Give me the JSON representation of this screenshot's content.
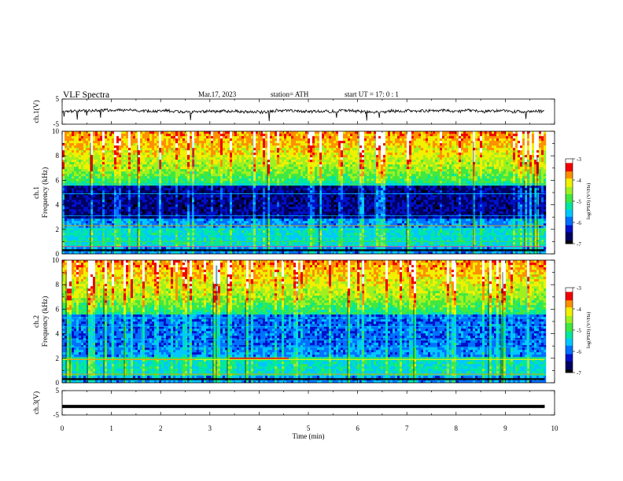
{
  "header": {
    "title": "VLF  Spectra",
    "date": "Mar.17, 2023",
    "station": "station= ATH",
    "start": "start  UT  =    17: 0   : 1"
  },
  "chart_data": [
    {
      "type": "line",
      "name": "ch1-waveform",
      "ylabel": "ch.1(V)",
      "ylim": [
        -5,
        5
      ],
      "yticks": [
        "5",
        "-5"
      ],
      "xlim": [
        0,
        10
      ],
      "trace_extent_min": [
        0,
        9.8
      ],
      "baseline": 0.3
    },
    {
      "type": "heatmap",
      "name": "ch1-spectrogram",
      "ylabel": "ch.1\nFrequency  (kHz)",
      "ylim": [
        0,
        10
      ],
      "yticks": [
        "0",
        "2",
        "4",
        "6",
        "8",
        "10"
      ],
      "xlim": [
        0,
        10
      ],
      "data_extent_min": [
        0,
        9.8
      ],
      "colorbar": {
        "label": "log(PSD) (V²/Hz)",
        "range": [
          -7,
          -3
        ],
        "ticks": [
          "-3",
          "-4",
          "-5",
          "-6",
          "-7"
        ]
      }
    },
    {
      "type": "heatmap",
      "name": "ch2-spectrogram",
      "ylabel": "ch.2\nFrequency  (kHz)",
      "ylim": [
        0,
        10
      ],
      "yticks": [
        "0",
        "2",
        "4",
        "6",
        "8",
        "10"
      ],
      "xlim": [
        0,
        10
      ],
      "data_extent_min": [
        0,
        9.8
      ],
      "colorbar": {
        "label": "log(PSD) (V²/Hz)",
        "range": [
          -7,
          -3
        ],
        "ticks": [
          "-3",
          "-4",
          "-5",
          "-6",
          "-7"
        ]
      }
    },
    {
      "type": "line",
      "name": "ch3-waveform",
      "ylabel": "ch.3(V)",
      "ylim": [
        -5,
        5
      ],
      "yticks": [
        "5",
        "-5"
      ],
      "xlim": [
        0,
        10
      ],
      "trace_extent_min": [
        0,
        9.8
      ],
      "baseline": -1.5
    }
  ],
  "xaxis": {
    "label": "Time  (min)",
    "ticks": [
      "0",
      "1",
      "2",
      "3",
      "4",
      "5",
      "6",
      "7",
      "8",
      "9",
      "10"
    ]
  },
  "colors": {
    "trace": "#000000",
    "axis": "#000000",
    "colormap": [
      "#000000",
      "#000060",
      "#0010c8",
      "#0070ff",
      "#00c8ff",
      "#00e8a0",
      "#40e840",
      "#a0f020",
      "#f0f000",
      "#ff9000",
      "#f00000",
      "#ffffff"
    ]
  }
}
